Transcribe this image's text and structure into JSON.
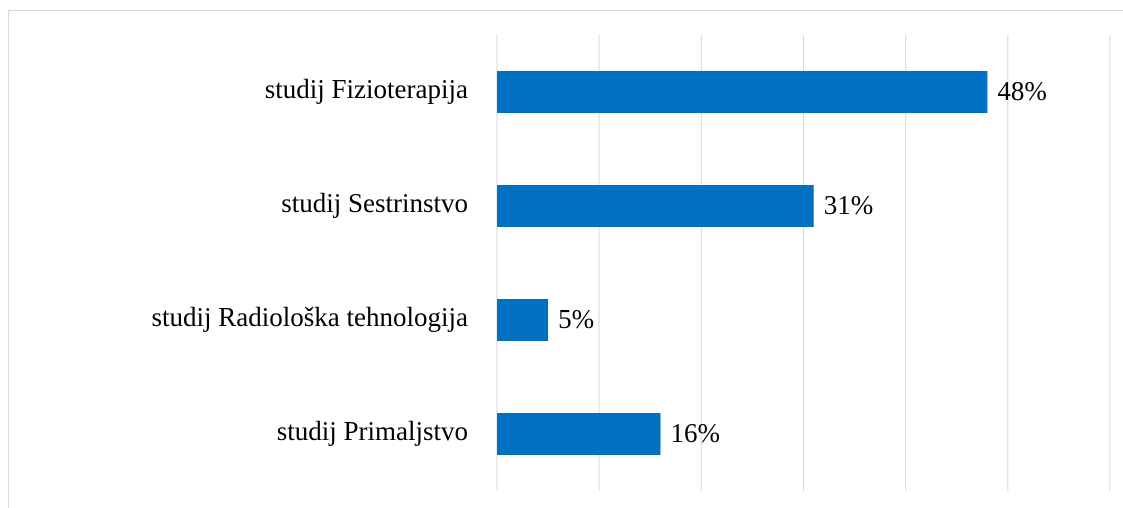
{
  "chart_data": {
    "type": "barh",
    "categories": [
      "studij Fizioterapija",
      "studij Sestrinstvo",
      "studij Radiološka tehnologija",
      "studij Primaljstvo"
    ],
    "values": [
      48,
      31,
      5,
      16
    ],
    "value_labels": [
      "48%",
      "31%",
      "5%",
      "16%"
    ],
    "color": "#0070c0",
    "xlim": [
      0,
      60
    ],
    "xticks": [
      0,
      10,
      20,
      30,
      40,
      50,
      60
    ],
    "grid": true
  }
}
